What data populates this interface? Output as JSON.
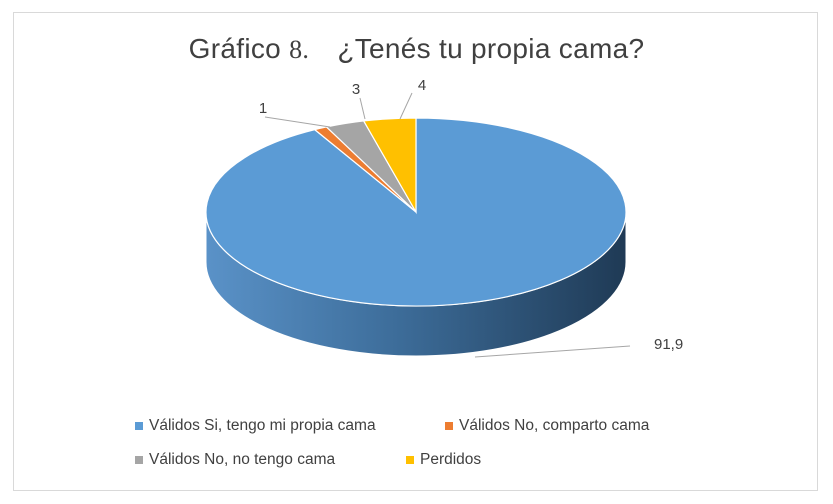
{
  "chart_data": {
    "type": "pie",
    "style": "3d",
    "title_prefix": "Gráfico",
    "title_number": "8.",
    "title_text": "¿Tenés tu propia cama?",
    "slices": [
      {
        "name": "Válidos Si, tengo mi propia cama",
        "value": 91.9,
        "label": "91,9",
        "color": "#5b9bd5"
      },
      {
        "name": "Válidos No, comparto cama",
        "value": 1,
        "label": "1",
        "color": "#ed7d31"
      },
      {
        "name": "Válidos No, no tengo cama",
        "value": 3,
        "label": "3",
        "color": "#a5a5a5"
      },
      {
        "name": "Perdidos",
        "value": 4,
        "label": "4",
        "color": "#ffc000"
      }
    ],
    "legend_position": "bottom"
  }
}
